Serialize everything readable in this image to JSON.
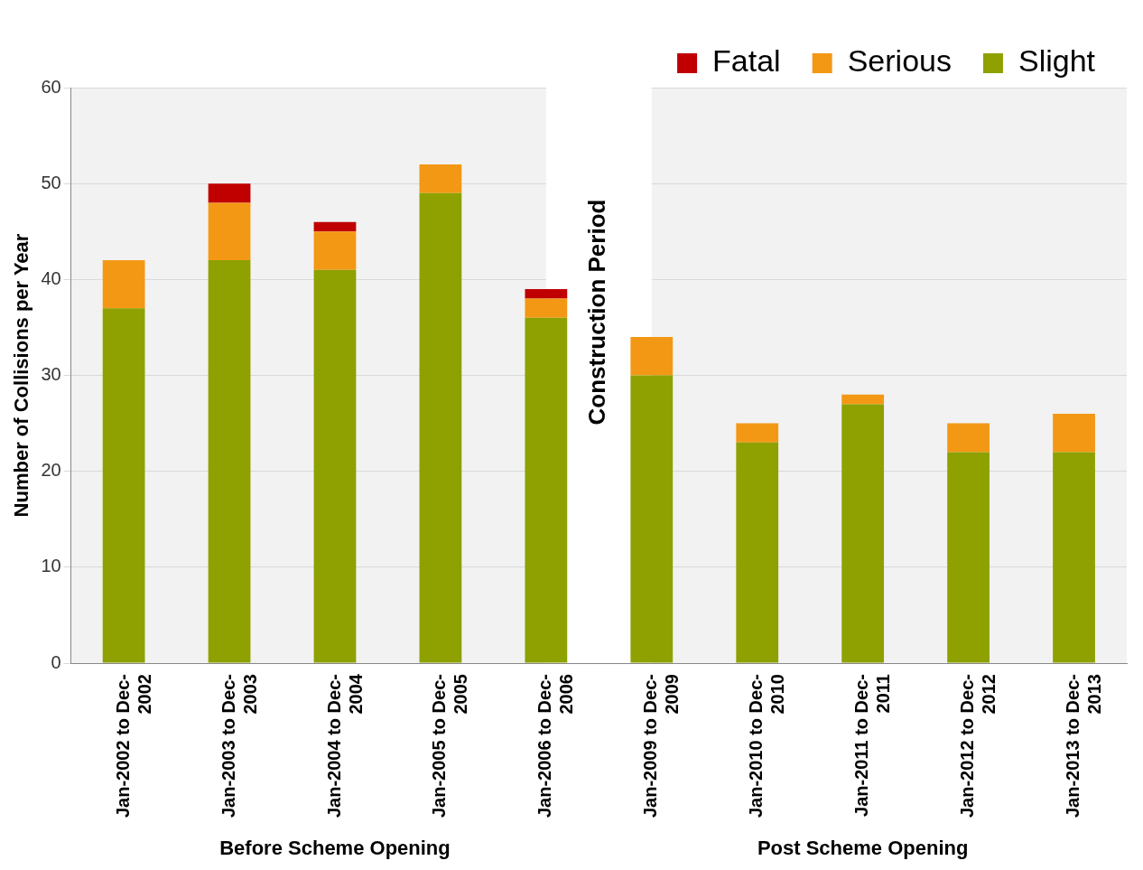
{
  "chart_data": {
    "type": "bar",
    "stacked": true,
    "ylabel": "Number of Collisions per Year",
    "categories": [
      "Jan-2002 to Dec-2002",
      "Jan-2003 to Dec-2003",
      "Jan-2004 to Dec-2004",
      "Jan-2005 to Dec-2005",
      "Jan-2006 to Dec-2006",
      "Jan-2009 to Dec-2009",
      "Jan-2010 to Dec-2010",
      "Jan-2011 to Dec-2011",
      "Jan-2012 to Dec-2012",
      "Jan-2013 to Dec-2013"
    ],
    "series": [
      {
        "name": "Slight",
        "color": "#8ea100",
        "values": [
          37,
          42,
          41,
          49,
          36,
          30,
          23,
          27,
          22,
          22
        ]
      },
      {
        "name": "Serious",
        "color": "#f39814",
        "values": [
          5,
          6,
          4,
          3,
          2,
          4,
          2,
          1,
          3,
          4
        ]
      },
      {
        "name": "Fatal",
        "color": "#c00000",
        "values": [
          0,
          2,
          1,
          0,
          1,
          0,
          0,
          0,
          0,
          0
        ]
      }
    ],
    "ylim": [
      0,
      60
    ],
    "yticks": [
      0,
      10,
      20,
      30,
      40,
      50,
      60
    ],
    "grid": "y",
    "legend": "top right",
    "bands": [
      {
        "axis": "x",
        "from": "Jan-2006 to Dec-2006",
        "to": "Jan-2009 to Dec-2009",
        "label": "Construction Period",
        "color": "#ffffff"
      }
    ],
    "annotations": [
      "Before Scheme Opening",
      "Post Scheme Opening"
    ]
  }
}
